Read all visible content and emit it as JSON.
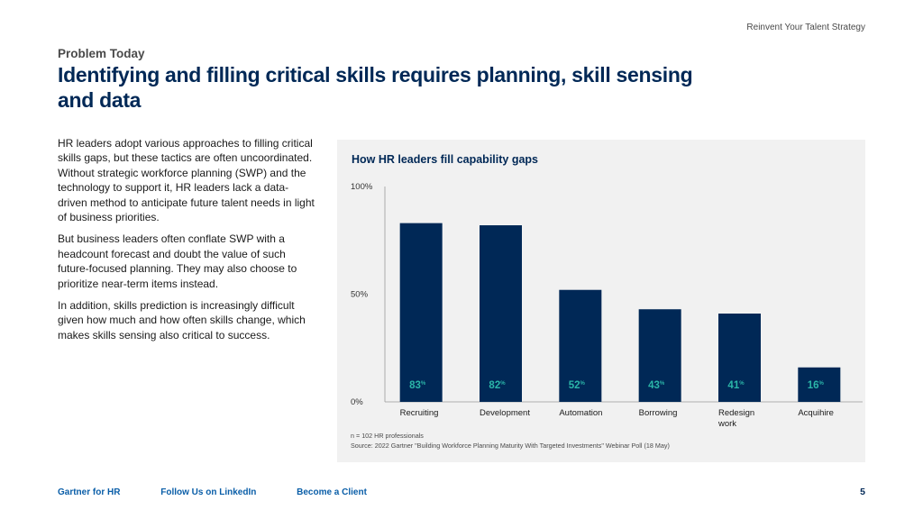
{
  "header": {
    "tagline": "Reinvent Your Talent Strategy",
    "eyebrow": "Problem Today",
    "title": "Identifying and filling critical skills requires planning, skill sensing and data"
  },
  "body": {
    "paragraphs": [
      "HR leaders adopt various approaches to filling critical skills gaps, but these tactics are often uncoordinated. Without strategic workforce planning (SWP) and the technology to support it, HR leaders lack a data-driven method to anticipate future talent needs in light of business priorities.",
      "But business leaders often conflate SWP with a headcount forecast and doubt the value of such future-focused planning. They may also choose to prioritize near-term items instead.",
      "In addition, skills prediction is increasingly difficult given how much and how often skills change, which makes skills sensing also critical to success."
    ]
  },
  "chart_data": {
    "type": "bar",
    "title": "How HR leaders fill capability gaps",
    "categories": [
      "Recruiting",
      "Development",
      "Automation",
      "Borrowing",
      "Redesign work",
      "Acquihire"
    ],
    "category_lines": [
      [
        "Recruiting"
      ],
      [
        "Development"
      ],
      [
        "Automation"
      ],
      [
        "Borrowing"
      ],
      [
        "Redesign",
        "work"
      ],
      [
        "Acquihire"
      ]
    ],
    "values": [
      83,
      82,
      52,
      43,
      41,
      16
    ],
    "value_suffix": "%",
    "ylim": [
      0,
      100
    ],
    "yticks": [
      0,
      50,
      100
    ],
    "ytick_labels": [
      "0%",
      "50%",
      "100%"
    ],
    "xlabel": "",
    "ylabel": "",
    "bar_color": "#002856",
    "label_color": "#2bb5a8",
    "notes": [
      "n = 102 HR professionals",
      "Source: 2022 Gartner \"Building Workforce Planning Maturity With Targeted Investments\" Webinar Poll (18 May)"
    ]
  },
  "footer": {
    "links": [
      "Gartner for HR",
      "Follow Us on LinkedIn",
      "Become a Client"
    ],
    "page_number": "5"
  },
  "colors": {
    "brand_navy": "#002856",
    "link_blue": "#0a5ea8",
    "panel_bg": "#f1f1f1"
  }
}
